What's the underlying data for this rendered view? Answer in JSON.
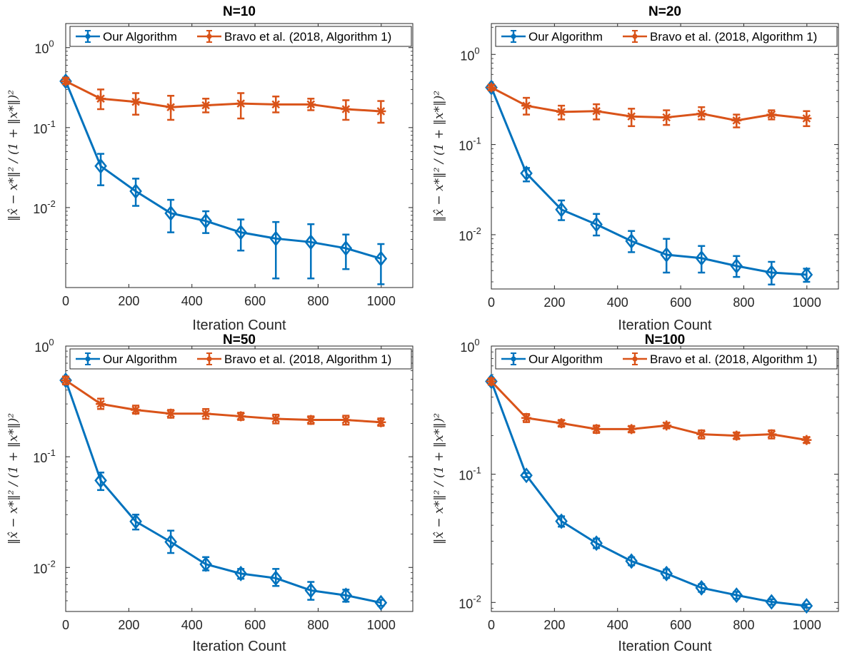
{
  "chart_data": [
    {
      "type": "line",
      "title": "N=10",
      "xlabel": "Iteration Count",
      "ylabel": "‖x̂ − x*‖² / (1 + ‖x*‖)²",
      "yscale": "log",
      "xlim": [
        0,
        1100
      ],
      "ylim": [
        0.001,
        2.0
      ],
      "xticks": [
        "0",
        "200",
        "400",
        "600",
        "800",
        "1000"
      ],
      "yticks": [
        {
          "v": 0.01,
          "base": "10",
          "exp": "-2"
        },
        {
          "v": 0.1,
          "base": "10",
          "exp": "-1"
        },
        {
          "v": 1,
          "base": "10",
          "exp": "0"
        }
      ],
      "legend_position": "top",
      "grid": false,
      "x": [
        0,
        111,
        222,
        333,
        444,
        555,
        666,
        777,
        888,
        999
      ],
      "series": [
        {
          "name": "Our Algorithm",
          "color": "#0072BD",
          "marker": "diamond",
          "values": [
            0.38,
            0.033,
            0.016,
            0.0085,
            0.0068,
            0.0049,
            0.0041,
            0.0037,
            0.0031,
            0.0023
          ],
          "err_low": [
            0.35,
            0.019,
            0.0105,
            0.0049,
            0.0048,
            0.0029,
            0.0013,
            0.0013,
            0.0017,
            0.0011
          ],
          "err_high": [
            0.42,
            0.047,
            0.023,
            0.0125,
            0.009,
            0.0071,
            0.0066,
            0.0062,
            0.0046,
            0.0035
          ]
        },
        {
          "name": "Bravo et al. (2018, Algorithm 1)",
          "color": "#D95319",
          "marker": "star",
          "values": [
            0.38,
            0.23,
            0.21,
            0.18,
            0.19,
            0.2,
            0.195,
            0.195,
            0.17,
            0.16
          ],
          "err_low": [
            0.35,
            0.17,
            0.145,
            0.125,
            0.155,
            0.13,
            0.155,
            0.165,
            0.125,
            0.115
          ],
          "err_high": [
            0.42,
            0.3,
            0.27,
            0.25,
            0.23,
            0.27,
            0.245,
            0.23,
            0.22,
            0.215
          ]
        }
      ]
    },
    {
      "type": "line",
      "title": "N=20",
      "xlabel": "Iteration Count",
      "ylabel": "‖x̂ − x*‖² / (1 + ‖x*‖)²",
      "yscale": "log",
      "xlim": [
        0,
        1100
      ],
      "ylim": [
        0.0025,
        2.2
      ],
      "xticks": [
        "0",
        "200",
        "400",
        "600",
        "800",
        "1000"
      ],
      "yticks": [
        {
          "v": 0.01,
          "base": "10",
          "exp": "-2"
        },
        {
          "v": 0.1,
          "base": "10",
          "exp": "-1"
        },
        {
          "v": 1,
          "base": "10",
          "exp": "0"
        }
      ],
      "legend_position": "top",
      "grid": false,
      "x": [
        0,
        111,
        222,
        333,
        444,
        555,
        666,
        777,
        888,
        999
      ],
      "series": [
        {
          "name": "Our Algorithm",
          "color": "#0072BD",
          "marker": "diamond",
          "values": [
            0.43,
            0.048,
            0.019,
            0.013,
            0.0085,
            0.006,
            0.0055,
            0.0045,
            0.0038,
            0.0036
          ],
          "err_low": [
            0.4,
            0.039,
            0.0145,
            0.0098,
            0.0064,
            0.0038,
            0.0038,
            0.0034,
            0.0028,
            0.003
          ],
          "err_high": [
            0.46,
            0.055,
            0.024,
            0.017,
            0.011,
            0.009,
            0.0075,
            0.0058,
            0.005,
            0.0042
          ]
        },
        {
          "name": "Bravo et al. (2018, Algorithm 1)",
          "color": "#D95319",
          "marker": "star",
          "values": [
            0.43,
            0.27,
            0.23,
            0.235,
            0.205,
            0.2,
            0.22,
            0.185,
            0.215,
            0.195
          ],
          "err_low": [
            0.4,
            0.215,
            0.19,
            0.19,
            0.16,
            0.165,
            0.19,
            0.155,
            0.19,
            0.16
          ],
          "err_high": [
            0.46,
            0.33,
            0.27,
            0.28,
            0.25,
            0.24,
            0.26,
            0.215,
            0.24,
            0.235
          ]
        }
      ]
    },
    {
      "type": "line",
      "title": "N=50",
      "xlabel": "Iteration Count",
      "ylabel": "‖x̂ − x*‖² / (1 + ‖x*‖)²",
      "yscale": "log",
      "xlim": [
        0,
        1100
      ],
      "ylim": [
        0.004,
        1.0
      ],
      "xticks": [
        "0",
        "200",
        "400",
        "600",
        "800",
        "1000"
      ],
      "yticks": [
        {
          "v": 0.01,
          "base": "10",
          "exp": "-2"
        },
        {
          "v": 0.1,
          "base": "10",
          "exp": "-1"
        },
        {
          "v": 1,
          "base": "10",
          "exp": "0"
        }
      ],
      "legend_position": "top",
      "grid": false,
      "x": [
        0,
        111,
        222,
        333,
        444,
        555,
        666,
        777,
        888,
        999
      ],
      "series": [
        {
          "name": "Our Algorithm",
          "color": "#0072BD",
          "marker": "diamond",
          "values": [
            0.49,
            0.061,
            0.026,
            0.017,
            0.0107,
            0.0088,
            0.008,
            0.0062,
            0.0056,
            0.0048
          ],
          "err_low": [
            0.45,
            0.05,
            0.022,
            0.0135,
            0.0094,
            0.0079,
            0.0068,
            0.0051,
            0.0049,
            0.0045
          ],
          "err_high": [
            0.53,
            0.072,
            0.03,
            0.0215,
            0.0124,
            0.0097,
            0.0097,
            0.0074,
            0.0063,
            0.0051
          ]
        },
        {
          "name": "Bravo et al. (2018, Algorithm 1)",
          "color": "#D95319",
          "marker": "star",
          "values": [
            0.49,
            0.3,
            0.265,
            0.245,
            0.245,
            0.232,
            0.22,
            0.215,
            0.215,
            0.205
          ],
          "err_low": [
            0.45,
            0.27,
            0.245,
            0.225,
            0.22,
            0.215,
            0.2,
            0.198,
            0.195,
            0.19
          ],
          "err_high": [
            0.53,
            0.335,
            0.29,
            0.265,
            0.27,
            0.25,
            0.24,
            0.232,
            0.235,
            0.222
          ]
        }
      ]
    },
    {
      "type": "line",
      "title": "N=100",
      "xlabel": "Iteration Count",
      "ylabel": "‖x̂ − x*‖² / (1 + ‖x*‖)²",
      "yscale": "log",
      "xlim": [
        0,
        1100
      ],
      "ylim": [
        0.0085,
        1.0
      ],
      "xticks": [
        "0",
        "200",
        "400",
        "600",
        "800",
        "1000"
      ],
      "yticks": [
        {
          "v": 0.01,
          "base": "10",
          "exp": "-2"
        },
        {
          "v": 0.1,
          "base": "10",
          "exp": "-1"
        },
        {
          "v": 1,
          "base": "10",
          "exp": "0"
        }
      ],
      "legend_position": "top",
      "grid": false,
      "x": [
        0,
        111,
        222,
        333,
        444,
        555,
        666,
        777,
        888,
        999
      ],
      "series": [
        {
          "name": "Our Algorithm",
          "color": "#0072BD",
          "marker": "diamond",
          "values": [
            0.53,
            0.098,
            0.043,
            0.029,
            0.021,
            0.0168,
            0.013,
            0.0114,
            0.0101,
            0.0094
          ],
          "err_low": [
            0.5,
            0.095,
            0.039,
            0.0265,
            0.0195,
            0.0155,
            0.0121,
            0.0107,
            0.0096,
            0.0091
          ],
          "err_high": [
            0.56,
            0.102,
            0.047,
            0.0315,
            0.0225,
            0.0181,
            0.0139,
            0.0121,
            0.0106,
            0.0097
          ]
        },
        {
          "name": "Bravo et al. (2018, Algorithm 1)",
          "color": "#D95319",
          "marker": "star",
          "values": [
            0.53,
            0.275,
            0.25,
            0.225,
            0.225,
            0.24,
            0.205,
            0.2,
            0.205,
            0.185
          ],
          "err_low": [
            0.5,
            0.255,
            0.235,
            0.21,
            0.212,
            0.228,
            0.19,
            0.188,
            0.19,
            0.175
          ],
          "err_high": [
            0.56,
            0.295,
            0.265,
            0.24,
            0.238,
            0.252,
            0.22,
            0.212,
            0.22,
            0.195
          ]
        }
      ]
    }
  ]
}
